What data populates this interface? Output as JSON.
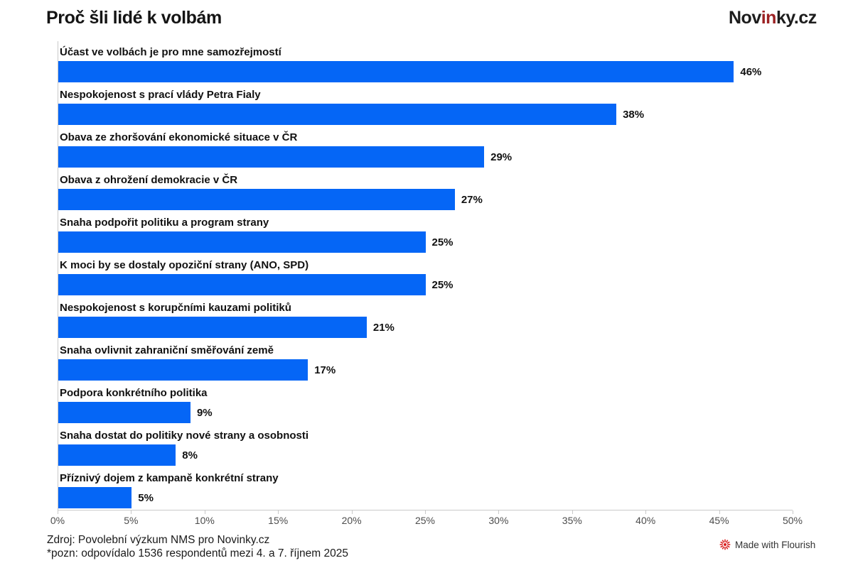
{
  "header": {
    "title": "Proč šli lidé k volbám",
    "logo": {
      "part1": "Nov",
      "part2": "in",
      "part3": "ky.cz",
      "accent_color": "#9c2123",
      "text_color": "#1d1d1d"
    }
  },
  "chart_data": {
    "type": "bar",
    "orientation": "horizontal",
    "title": "Proč šli lidé k volbám",
    "bar_color": "#0566f6",
    "categories": [
      "Účast ve volbách je pro mne samozřejmostí",
      "Nespokojenost s prací vlády Petra Fialy",
      "Obava ze zhoršování ekonomické situace v ČR",
      "Obava z ohrožení demokracie v ČR",
      "Snaha podpořit politiku a program strany",
      "K moci by se dostaly opoziční strany (ANO, SPD)",
      "Nespokojenost s korupčními kauzami politiků",
      "Snaha ovlivnit zahraniční směřování země",
      "Podpora konkrétního politika",
      "Snaha dostat do politiky nové strany a osobnosti",
      "Příznivý dojem z kampaně konkrétní strany"
    ],
    "values": [
      46,
      38,
      29,
      27,
      25,
      25,
      21,
      17,
      9,
      8,
      5
    ],
    "value_suffix": "%",
    "xlim": [
      0,
      50
    ],
    "x_ticks": [
      "0%",
      "5%",
      "10%",
      "15%",
      "20%",
      "25%",
      "30%",
      "35%",
      "40%",
      "45%",
      "50%"
    ],
    "grid": false,
    "legend": "none",
    "axis_color": "#c9c9c9"
  },
  "footer": {
    "source": "Zdroj: Povolební výzkum NMS pro Novinky.cz",
    "note": "*pozn: odpovídalo 1536 respondentů mezi 4. a 7. říjnem 2025",
    "credit": "Made with Flourish",
    "credit_icon_color": "#d92121"
  }
}
